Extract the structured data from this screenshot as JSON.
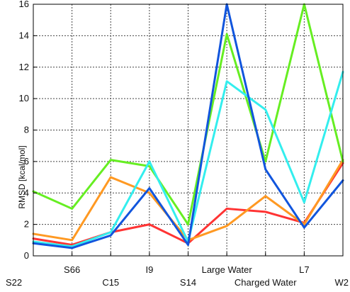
{
  "chart_data": {
    "type": "line",
    "title": "",
    "xlabel": "",
    "ylabel": "RMSD [kcal/mol]",
    "ylim": [
      0,
      16
    ],
    "yticks": [
      0,
      2,
      4,
      6,
      8,
      10,
      12,
      14,
      16
    ],
    "grid": true,
    "categories": [
      "S22",
      "S66",
      "C15",
      "I9",
      "S14",
      "Large Water",
      "Charged Water",
      "L7",
      "W2"
    ],
    "series": [
      {
        "color": "#ff3333",
        "values": [
          1.1,
          0.7,
          1.5,
          2.0,
          0.8,
          3.0,
          2.8,
          2.1,
          5.9
        ]
      },
      {
        "color": "#ff9922",
        "values": [
          1.4,
          1.0,
          5.0,
          4.0,
          1.0,
          1.9,
          3.8,
          2.0,
          6.1
        ]
      },
      {
        "color": "#66ee22",
        "values": [
          4.1,
          3.0,
          6.1,
          5.7,
          2.0,
          14.1,
          6.0,
          16.0,
          6.0
        ]
      },
      {
        "color": "#33eeee",
        "values": [
          0.9,
          0.6,
          1.5,
          6.0,
          0.9,
          11.1,
          9.3,
          3.4,
          11.7
        ]
      },
      {
        "color": "#1155dd",
        "values": [
          0.8,
          0.5,
          1.3,
          4.3,
          0.7,
          16.0,
          5.5,
          1.8,
          4.8
        ]
      }
    ]
  }
}
